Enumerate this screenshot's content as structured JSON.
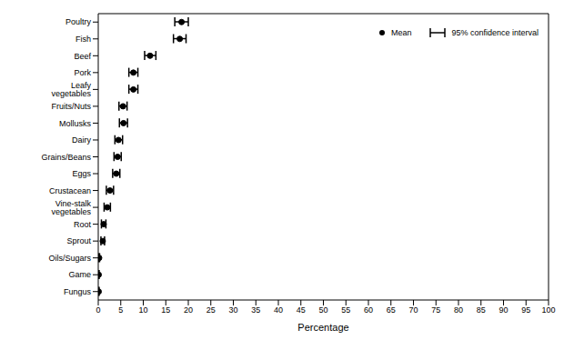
{
  "chart_data": {
    "type": "dot_errorbar",
    "orientation": "horizontal",
    "categories": [
      "Poultry",
      "Fish",
      "Beef",
      "Pork",
      "Leafy vegetables",
      "Fruits/Nuts",
      "Mollusks",
      "Dairy",
      "Grains/Beans",
      "Eggs",
      "Crustacean",
      "Vine-stalk vegetables",
      "Root",
      "Sprout",
      "Oils/Sugars",
      "Game",
      "Fungus"
    ],
    "series": [
      {
        "name": "Mean",
        "color": "#000000",
        "marker": "circle",
        "values": [
          18.5,
          18.1,
          11.5,
          7.8,
          7.8,
          5.5,
          5.6,
          4.5,
          4.3,
          4.0,
          2.6,
          2.0,
          1.2,
          1.0,
          0.2,
          0.1,
          0.1
        ],
        "ci_name": "95% confidence interval",
        "ci": [
          [
            17.0,
            20.0
          ],
          [
            16.7,
            19.5
          ],
          [
            10.3,
            12.8
          ],
          [
            6.8,
            8.8
          ],
          [
            6.8,
            8.8
          ],
          [
            4.6,
            6.4
          ],
          [
            4.7,
            6.5
          ],
          [
            3.7,
            5.4
          ],
          [
            3.5,
            5.1
          ],
          [
            3.2,
            4.8
          ],
          [
            1.8,
            3.4
          ],
          [
            1.3,
            2.7
          ],
          [
            0.7,
            1.7
          ],
          [
            0.6,
            1.4
          ],
          [
            0.1,
            0.3
          ],
          [
            0.0,
            0.2
          ],
          [
            0.0,
            0.2
          ]
        ]
      }
    ],
    "x_label": "Percentage",
    "xlim": [
      0,
      100
    ],
    "xticks": [
      0,
      5,
      10,
      15,
      20,
      25,
      30,
      35,
      40,
      45,
      50,
      55,
      60,
      65,
      70,
      75,
      80,
      85,
      90,
      95,
      100
    ],
    "legend": "upper right",
    "grid": false
  }
}
